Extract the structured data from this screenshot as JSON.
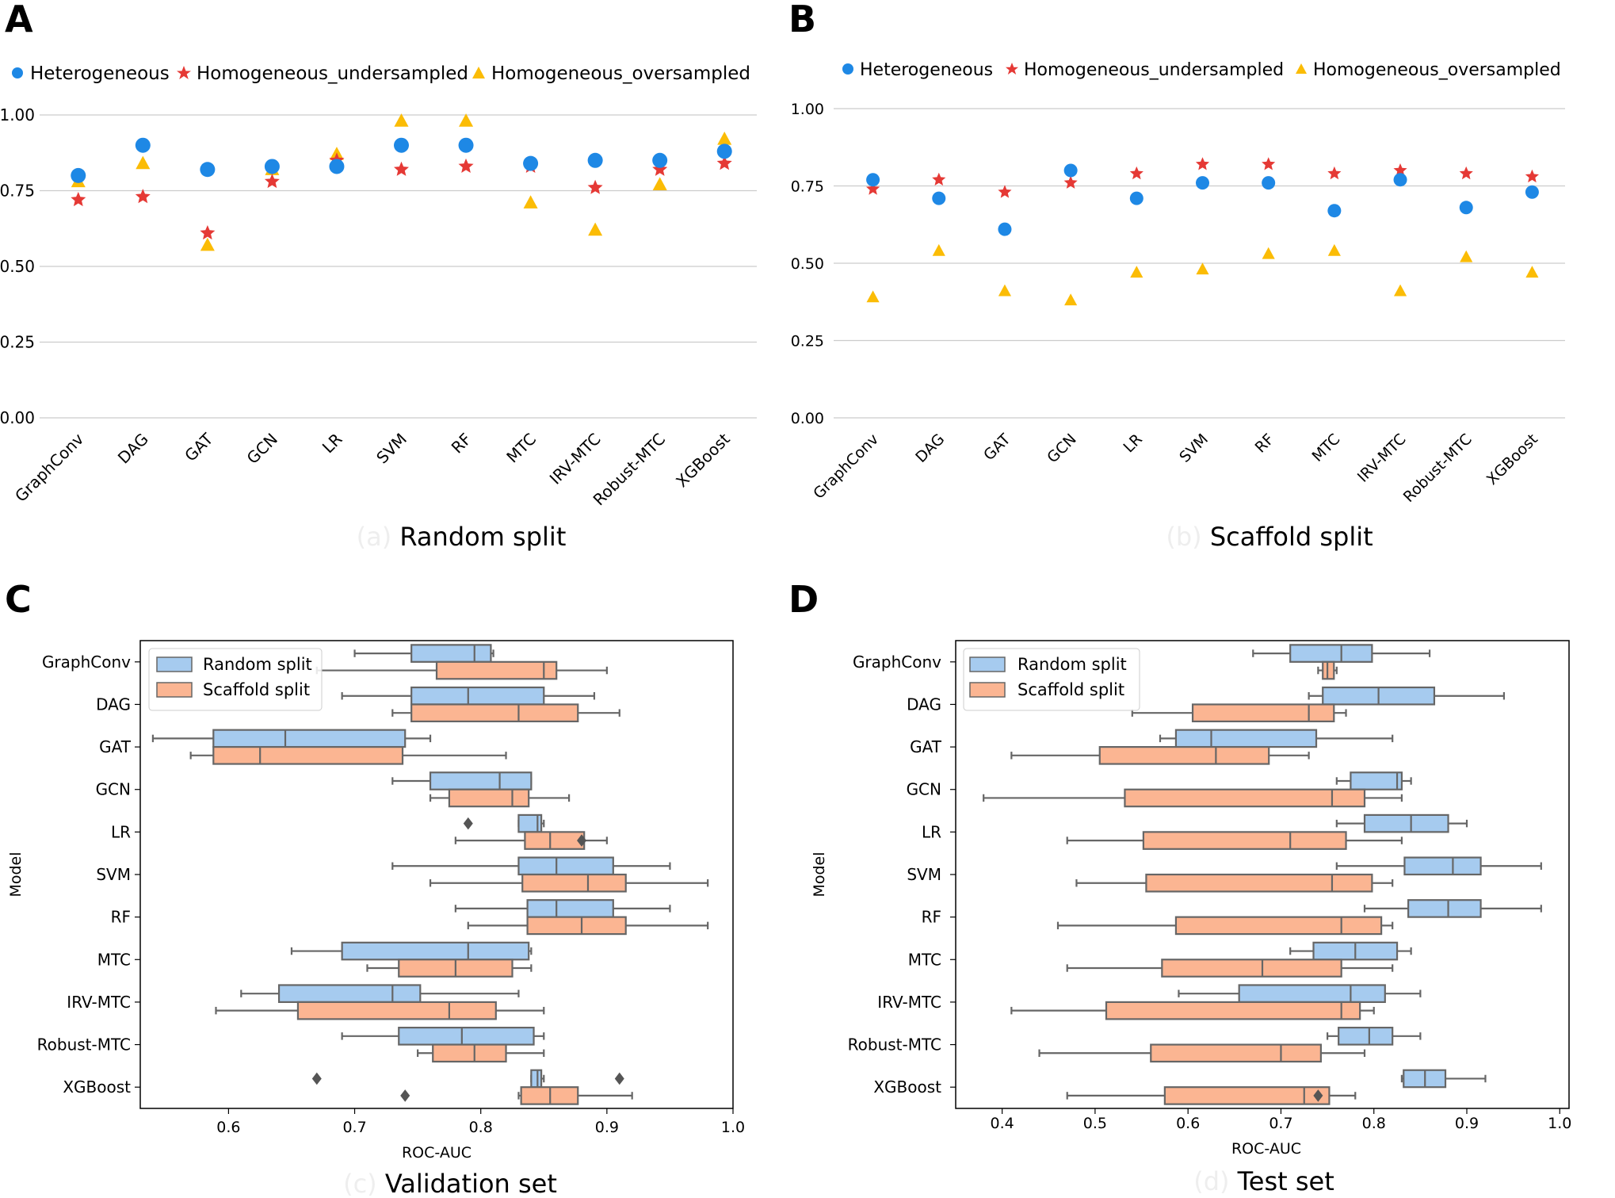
{
  "figure": {
    "panels": [
      "A",
      "B",
      "C",
      "D"
    ],
    "colors": {
      "heterogeneous": "#1e88e5",
      "undersampled": "#e53935",
      "oversampled": "#fbbc05",
      "random_box": "#a6cbef",
      "scaffold_box": "#fbb592",
      "box_edge": "#666666",
      "grid": "#cccccc"
    }
  },
  "chart_data": [
    {
      "id": "A",
      "type": "scatter",
      "panel_label": "A",
      "title": "Random split",
      "caption_prefix": "(a)",
      "xlabel": "",
      "ylabel": "",
      "categories": [
        "GraphConv",
        "DAG",
        "GAT",
        "GCN",
        "LR",
        "SVM",
        "RF",
        "MTC",
        "IRV-MTC",
        "Robust-MTC",
        "XGBoost"
      ],
      "ylim": [
        0,
        1.0
      ],
      "yticks": [
        "0.00",
        "0.25",
        "0.50",
        "0.75",
        "1.00"
      ],
      "grid": true,
      "legend": "top",
      "series": [
        {
          "name": "Heterogeneous",
          "marker": "circle",
          "values": [
            0.8,
            0.9,
            0.82,
            0.83,
            0.83,
            0.9,
            0.9,
            0.84,
            0.85,
            0.85,
            0.88
          ]
        },
        {
          "name": "Homogeneous_undersampled",
          "marker": "star",
          "values": [
            0.72,
            0.73,
            0.61,
            0.78,
            0.85,
            0.82,
            0.83,
            0.83,
            0.76,
            0.82,
            0.84
          ]
        },
        {
          "name": "Homogeneous_oversampled",
          "marker": "triangle",
          "values": [
            0.78,
            0.84,
            0.57,
            0.82,
            0.87,
            0.98,
            0.98,
            0.71,
            0.62,
            0.77,
            0.92
          ]
        }
      ]
    },
    {
      "id": "B",
      "type": "scatter",
      "panel_label": "B",
      "title": "Scaffold split",
      "caption_prefix": "(b)",
      "xlabel": "",
      "ylabel": "",
      "categories": [
        "GraphConv",
        "DAG",
        "GAT",
        "GCN",
        "LR",
        "SVM",
        "RF",
        "MTC",
        "IRV-MTC",
        "Robust-MTC",
        "XGBoost"
      ],
      "ylim": [
        0,
        1.0
      ],
      "yticks": [
        "0.00",
        "0.25",
        "0.50",
        "0.75",
        "1.00"
      ],
      "grid": true,
      "legend": "top",
      "series": [
        {
          "name": "Heterogeneous",
          "marker": "circle",
          "values": [
            0.77,
            0.71,
            0.61,
            0.8,
            0.71,
            0.76,
            0.76,
            0.67,
            0.77,
            0.68,
            0.73
          ]
        },
        {
          "name": "Homogeneous_undersampled",
          "marker": "star",
          "values": [
            0.74,
            0.77,
            0.73,
            0.76,
            0.79,
            0.82,
            0.82,
            0.79,
            0.8,
            0.79,
            0.78
          ]
        },
        {
          "name": "Homogeneous_oversampled",
          "marker": "triangle",
          "values": [
            0.39,
            0.54,
            0.41,
            0.38,
            0.47,
            0.48,
            0.53,
            0.54,
            0.41,
            0.52,
            0.47
          ]
        }
      ]
    },
    {
      "id": "C",
      "type": "box",
      "panel_label": "C",
      "title": "Validation set",
      "caption_prefix": "(c)",
      "xlabel": "ROC-AUC",
      "ylabel": "Model",
      "xlim": [
        0.53,
        1.0
      ],
      "xticks": [
        "0.6",
        "0.7",
        "0.8",
        "0.9",
        "1.0"
      ],
      "legend": "top-left",
      "categories": [
        "GraphConv",
        "DAG",
        "GAT",
        "GCN",
        "LR",
        "SVM",
        "RF",
        "MTC",
        "IRV-MTC",
        "Robust-MTC",
        "XGBoost"
      ],
      "series": [
        {
          "name": "Random split",
          "boxes": [
            {
              "whislo": 0.7,
              "q1": 0.745,
              "med": 0.795,
              "q3": 0.808,
              "whishi": 0.81,
              "fliers": []
            },
            {
              "whislo": 0.69,
              "q1": 0.745,
              "med": 0.79,
              "q3": 0.85,
              "whishi": 0.89,
              "fliers": []
            },
            {
              "whislo": 0.54,
              "q1": 0.588,
              "med": 0.645,
              "q3": 0.74,
              "whishi": 0.76,
              "fliers": []
            },
            {
              "whislo": 0.73,
              "q1": 0.76,
              "med": 0.815,
              "q3": 0.84,
              "whishi": 0.84,
              "fliers": []
            },
            {
              "whislo": 0.83,
              "q1": 0.83,
              "med": 0.845,
              "q3": 0.848,
              "whishi": 0.85,
              "fliers": [
                0.79
              ]
            },
            {
              "whislo": 0.73,
              "q1": 0.83,
              "med": 0.86,
              "q3": 0.905,
              "whishi": 0.95,
              "fliers": []
            },
            {
              "whislo": 0.78,
              "q1": 0.837,
              "med": 0.86,
              "q3": 0.905,
              "whishi": 0.95,
              "fliers": []
            },
            {
              "whislo": 0.65,
              "q1": 0.69,
              "med": 0.79,
              "q3": 0.838,
              "whishi": 0.84,
              "fliers": []
            },
            {
              "whislo": 0.61,
              "q1": 0.64,
              "med": 0.73,
              "q3": 0.752,
              "whishi": 0.83,
              "fliers": []
            },
            {
              "whislo": 0.69,
              "q1": 0.735,
              "med": 0.785,
              "q3": 0.842,
              "whishi": 0.85,
              "fliers": []
            },
            {
              "whislo": 0.84,
              "q1": 0.84,
              "med": 0.845,
              "q3": 0.848,
              "whishi": 0.85,
              "fliers": [
                0.67,
                0.91
              ]
            }
          ]
        },
        {
          "name": "Scaffold split",
          "boxes": [
            {
              "whislo": 0.67,
              "q1": 0.765,
              "med": 0.85,
              "q3": 0.86,
              "whishi": 0.9,
              "fliers": []
            },
            {
              "whislo": 0.73,
              "q1": 0.745,
              "med": 0.83,
              "q3": 0.877,
              "whishi": 0.91,
              "fliers": []
            },
            {
              "whislo": 0.57,
              "q1": 0.588,
              "med": 0.625,
              "q3": 0.738,
              "whishi": 0.82,
              "fliers": []
            },
            {
              "whislo": 0.76,
              "q1": 0.775,
              "med": 0.825,
              "q3": 0.838,
              "whishi": 0.87,
              "fliers": []
            },
            {
              "whislo": 0.78,
              "q1": 0.835,
              "med": 0.855,
              "q3": 0.882,
              "whishi": 0.9,
              "fliers": [
                0.88
              ]
            },
            {
              "whislo": 0.76,
              "q1": 0.833,
              "med": 0.885,
              "q3": 0.915,
              "whishi": 0.98,
              "fliers": []
            },
            {
              "whislo": 0.79,
              "q1": 0.837,
              "med": 0.88,
              "q3": 0.915,
              "whishi": 0.98,
              "fliers": []
            },
            {
              "whislo": 0.71,
              "q1": 0.735,
              "med": 0.78,
              "q3": 0.825,
              "whishi": 0.84,
              "fliers": []
            },
            {
              "whislo": 0.59,
              "q1": 0.655,
              "med": 0.775,
              "q3": 0.812,
              "whishi": 0.85,
              "fliers": []
            },
            {
              "whislo": 0.75,
              "q1": 0.762,
              "med": 0.795,
              "q3": 0.82,
              "whishi": 0.85,
              "fliers": []
            },
            {
              "whislo": 0.83,
              "q1": 0.832,
              "med": 0.855,
              "q3": 0.877,
              "whishi": 0.92,
              "fliers": [
                0.74
              ]
            }
          ]
        }
      ]
    },
    {
      "id": "D",
      "type": "box",
      "panel_label": "D",
      "title": "Test set",
      "caption_prefix": "(d)",
      "xlabel": "ROC-AUC",
      "ylabel": "Model",
      "xlim": [
        0.35,
        1.01
      ],
      "xticks": [
        "0.4",
        "0.5",
        "0.6",
        "0.7",
        "0.8",
        "0.9",
        "1.0"
      ],
      "legend": "top-left",
      "categories": [
        "GraphConv",
        "DAG",
        "GAT",
        "GCN",
        "LR",
        "SVM",
        "RF",
        "MTC",
        "IRV-MTC",
        "Robust-MTC",
        "XGBoost"
      ],
      "series": [
        {
          "name": "Random split",
          "boxes": [
            {
              "whislo": 0.67,
              "q1": 0.71,
              "med": 0.765,
              "q3": 0.798,
              "whishi": 0.86,
              "fliers": []
            },
            {
              "whislo": 0.73,
              "q1": 0.745,
              "med": 0.805,
              "q3": 0.865,
              "whishi": 0.94,
              "fliers": []
            },
            {
              "whislo": 0.57,
              "q1": 0.587,
              "med": 0.625,
              "q3": 0.738,
              "whishi": 0.82,
              "fliers": []
            },
            {
              "whislo": 0.76,
              "q1": 0.775,
              "med": 0.825,
              "q3": 0.83,
              "whishi": 0.84,
              "fliers": []
            },
            {
              "whislo": 0.76,
              "q1": 0.79,
              "med": 0.84,
              "q3": 0.88,
              "whishi": 0.9,
              "fliers": []
            },
            {
              "whislo": 0.76,
              "q1": 0.833,
              "med": 0.885,
              "q3": 0.915,
              "whishi": 0.98,
              "fliers": []
            },
            {
              "whislo": 0.79,
              "q1": 0.837,
              "med": 0.88,
              "q3": 0.915,
              "whishi": 0.98,
              "fliers": []
            },
            {
              "whislo": 0.71,
              "q1": 0.735,
              "med": 0.78,
              "q3": 0.825,
              "whishi": 0.84,
              "fliers": []
            },
            {
              "whislo": 0.59,
              "q1": 0.655,
              "med": 0.775,
              "q3": 0.812,
              "whishi": 0.85,
              "fliers": []
            },
            {
              "whislo": 0.75,
              "q1": 0.762,
              "med": 0.795,
              "q3": 0.82,
              "whishi": 0.85,
              "fliers": []
            },
            {
              "whislo": 0.83,
              "q1": 0.832,
              "med": 0.855,
              "q3": 0.877,
              "whishi": 0.92,
              "fliers": []
            }
          ]
        },
        {
          "name": "Scaffold split",
          "boxes": [
            {
              "whislo": 0.74,
              "q1": 0.745,
              "med": 0.75,
              "q3": 0.757,
              "whishi": 0.76,
              "fliers": []
            },
            {
              "whislo": 0.54,
              "q1": 0.605,
              "med": 0.73,
              "q3": 0.757,
              "whishi": 0.77,
              "fliers": []
            },
            {
              "whislo": 0.41,
              "q1": 0.505,
              "med": 0.63,
              "q3": 0.687,
              "whishi": 0.73,
              "fliers": []
            },
            {
              "whislo": 0.38,
              "q1": 0.532,
              "med": 0.755,
              "q3": 0.79,
              "whishi": 0.83,
              "fliers": []
            },
            {
              "whislo": 0.47,
              "q1": 0.552,
              "med": 0.71,
              "q3": 0.77,
              "whishi": 0.83,
              "fliers": []
            },
            {
              "whislo": 0.48,
              "q1": 0.555,
              "med": 0.755,
              "q3": 0.798,
              "whishi": 0.82,
              "fliers": []
            },
            {
              "whislo": 0.46,
              "q1": 0.587,
              "med": 0.765,
              "q3": 0.808,
              "whishi": 0.82,
              "fliers": []
            },
            {
              "whislo": 0.47,
              "q1": 0.572,
              "med": 0.68,
              "q3": 0.765,
              "whishi": 0.82,
              "fliers": []
            },
            {
              "whislo": 0.41,
              "q1": 0.512,
              "med": 0.765,
              "q3": 0.785,
              "whishi": 0.8,
              "fliers": []
            },
            {
              "whislo": 0.44,
              "q1": 0.56,
              "med": 0.7,
              "q3": 0.743,
              "whishi": 0.79,
              "fliers": []
            },
            {
              "whislo": 0.47,
              "q1": 0.575,
              "med": 0.725,
              "q3": 0.752,
              "whishi": 0.78,
              "fliers": [
                0.74
              ]
            }
          ]
        }
      ]
    }
  ]
}
